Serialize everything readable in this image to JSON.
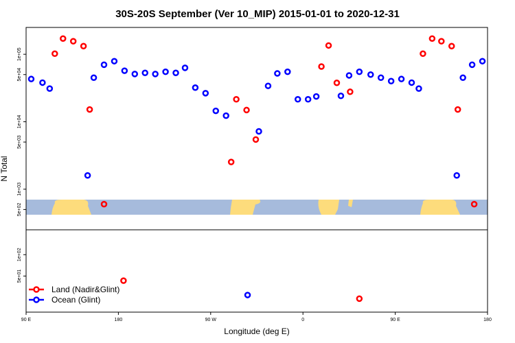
{
  "chart_data": [
    {
      "type": "scatter",
      "title": "30S-20S September (Ver 10_MIP)   2015-01-01 to 2020-12-31",
      "y_label": "N Total",
      "log_scale": true,
      "xlim": [
        90,
        540
      ],
      "ylim": [
        250,
        250000
      ],
      "yticks": [
        {
          "value": 500,
          "label": "5e+02"
        },
        {
          "value": 1000,
          "label": "1e+03"
        },
        {
          "value": 5000,
          "label": "5e+03"
        },
        {
          "value": 10000,
          "label": "1e+04"
        },
        {
          "value": 50000,
          "label": "5e+04"
        },
        {
          "value": 100000,
          "label": "1e+05"
        }
      ],
      "series": [
        {
          "color": "#ff0000",
          "x": [
            118,
            126,
            136,
            146,
            152,
            166,
            290,
            295,
            305,
            314,
            378,
            385,
            393,
            406,
            477,
            486,
            495,
            505,
            511,
            527
          ],
          "values": [
            102000,
            171000,
            156000,
            132000,
            15200,
            600,
            2530,
            21500,
            14900,
            5450,
            65800,
            135000,
            37700,
            27800,
            102000,
            171000,
            156000,
            132000,
            15200,
            600
          ]
        },
        {
          "color": "#0000ff",
          "x": [
            95,
            106,
            113,
            150,
            156,
            166,
            176,
            186,
            196,
            206,
            216,
            226,
            236,
            245,
            255,
            265,
            275,
            285,
            317,
            326,
            335,
            345,
            355,
            365,
            373,
            397,
            405,
            415,
            426,
            436,
            446,
            456,
            466,
            473,
            510,
            516,
            525,
            535
          ],
          "values": [
            43000,
            38000,
            31000,
            1600,
            45000,
            70000,
            79000,
            57000,
            51000,
            53000,
            51000,
            55000,
            53000,
            63000,
            32000,
            26500,
            14500,
            12300,
            7200,
            34000,
            52000,
            55000,
            21500,
            21500,
            23700,
            24200,
            48600,
            55000,
            50000,
            45000,
            40000,
            43000,
            38000,
            31000,
            1600,
            45000,
            70000,
            79000
          ]
        }
      ]
    },
    {
      "type": "scatter",
      "x_label": "Longitude (deg E)",
      "log_scale": true,
      "xlim": [
        90,
        540
      ],
      "ylim": [
        15.5,
        224
      ],
      "xticks": [
        {
          "value": 90,
          "label": "90 E"
        },
        {
          "value": 180,
          "label": "180"
        },
        {
          "value": 270,
          "label": "90 W"
        },
        {
          "value": 360,
          "label": "0"
        },
        {
          "value": 450,
          "label": "90 E"
        },
        {
          "value": 540,
          "label": "180"
        }
      ],
      "yticks": [
        {
          "value": 50,
          "label": "5e+01"
        },
        {
          "value": 100,
          "label": "1e+02"
        }
      ],
      "legend": "lower left",
      "series": [
        {
          "name": "Land (Nadir&Glint)",
          "color": "#ff0000",
          "x": [
            185,
            415
          ],
          "values": [
            43,
            24
          ]
        },
        {
          "name": "Ocean (Glint)",
          "color": "#0000ff",
          "x": [
            306
          ],
          "values": [
            27
          ]
        }
      ]
    }
  ]
}
